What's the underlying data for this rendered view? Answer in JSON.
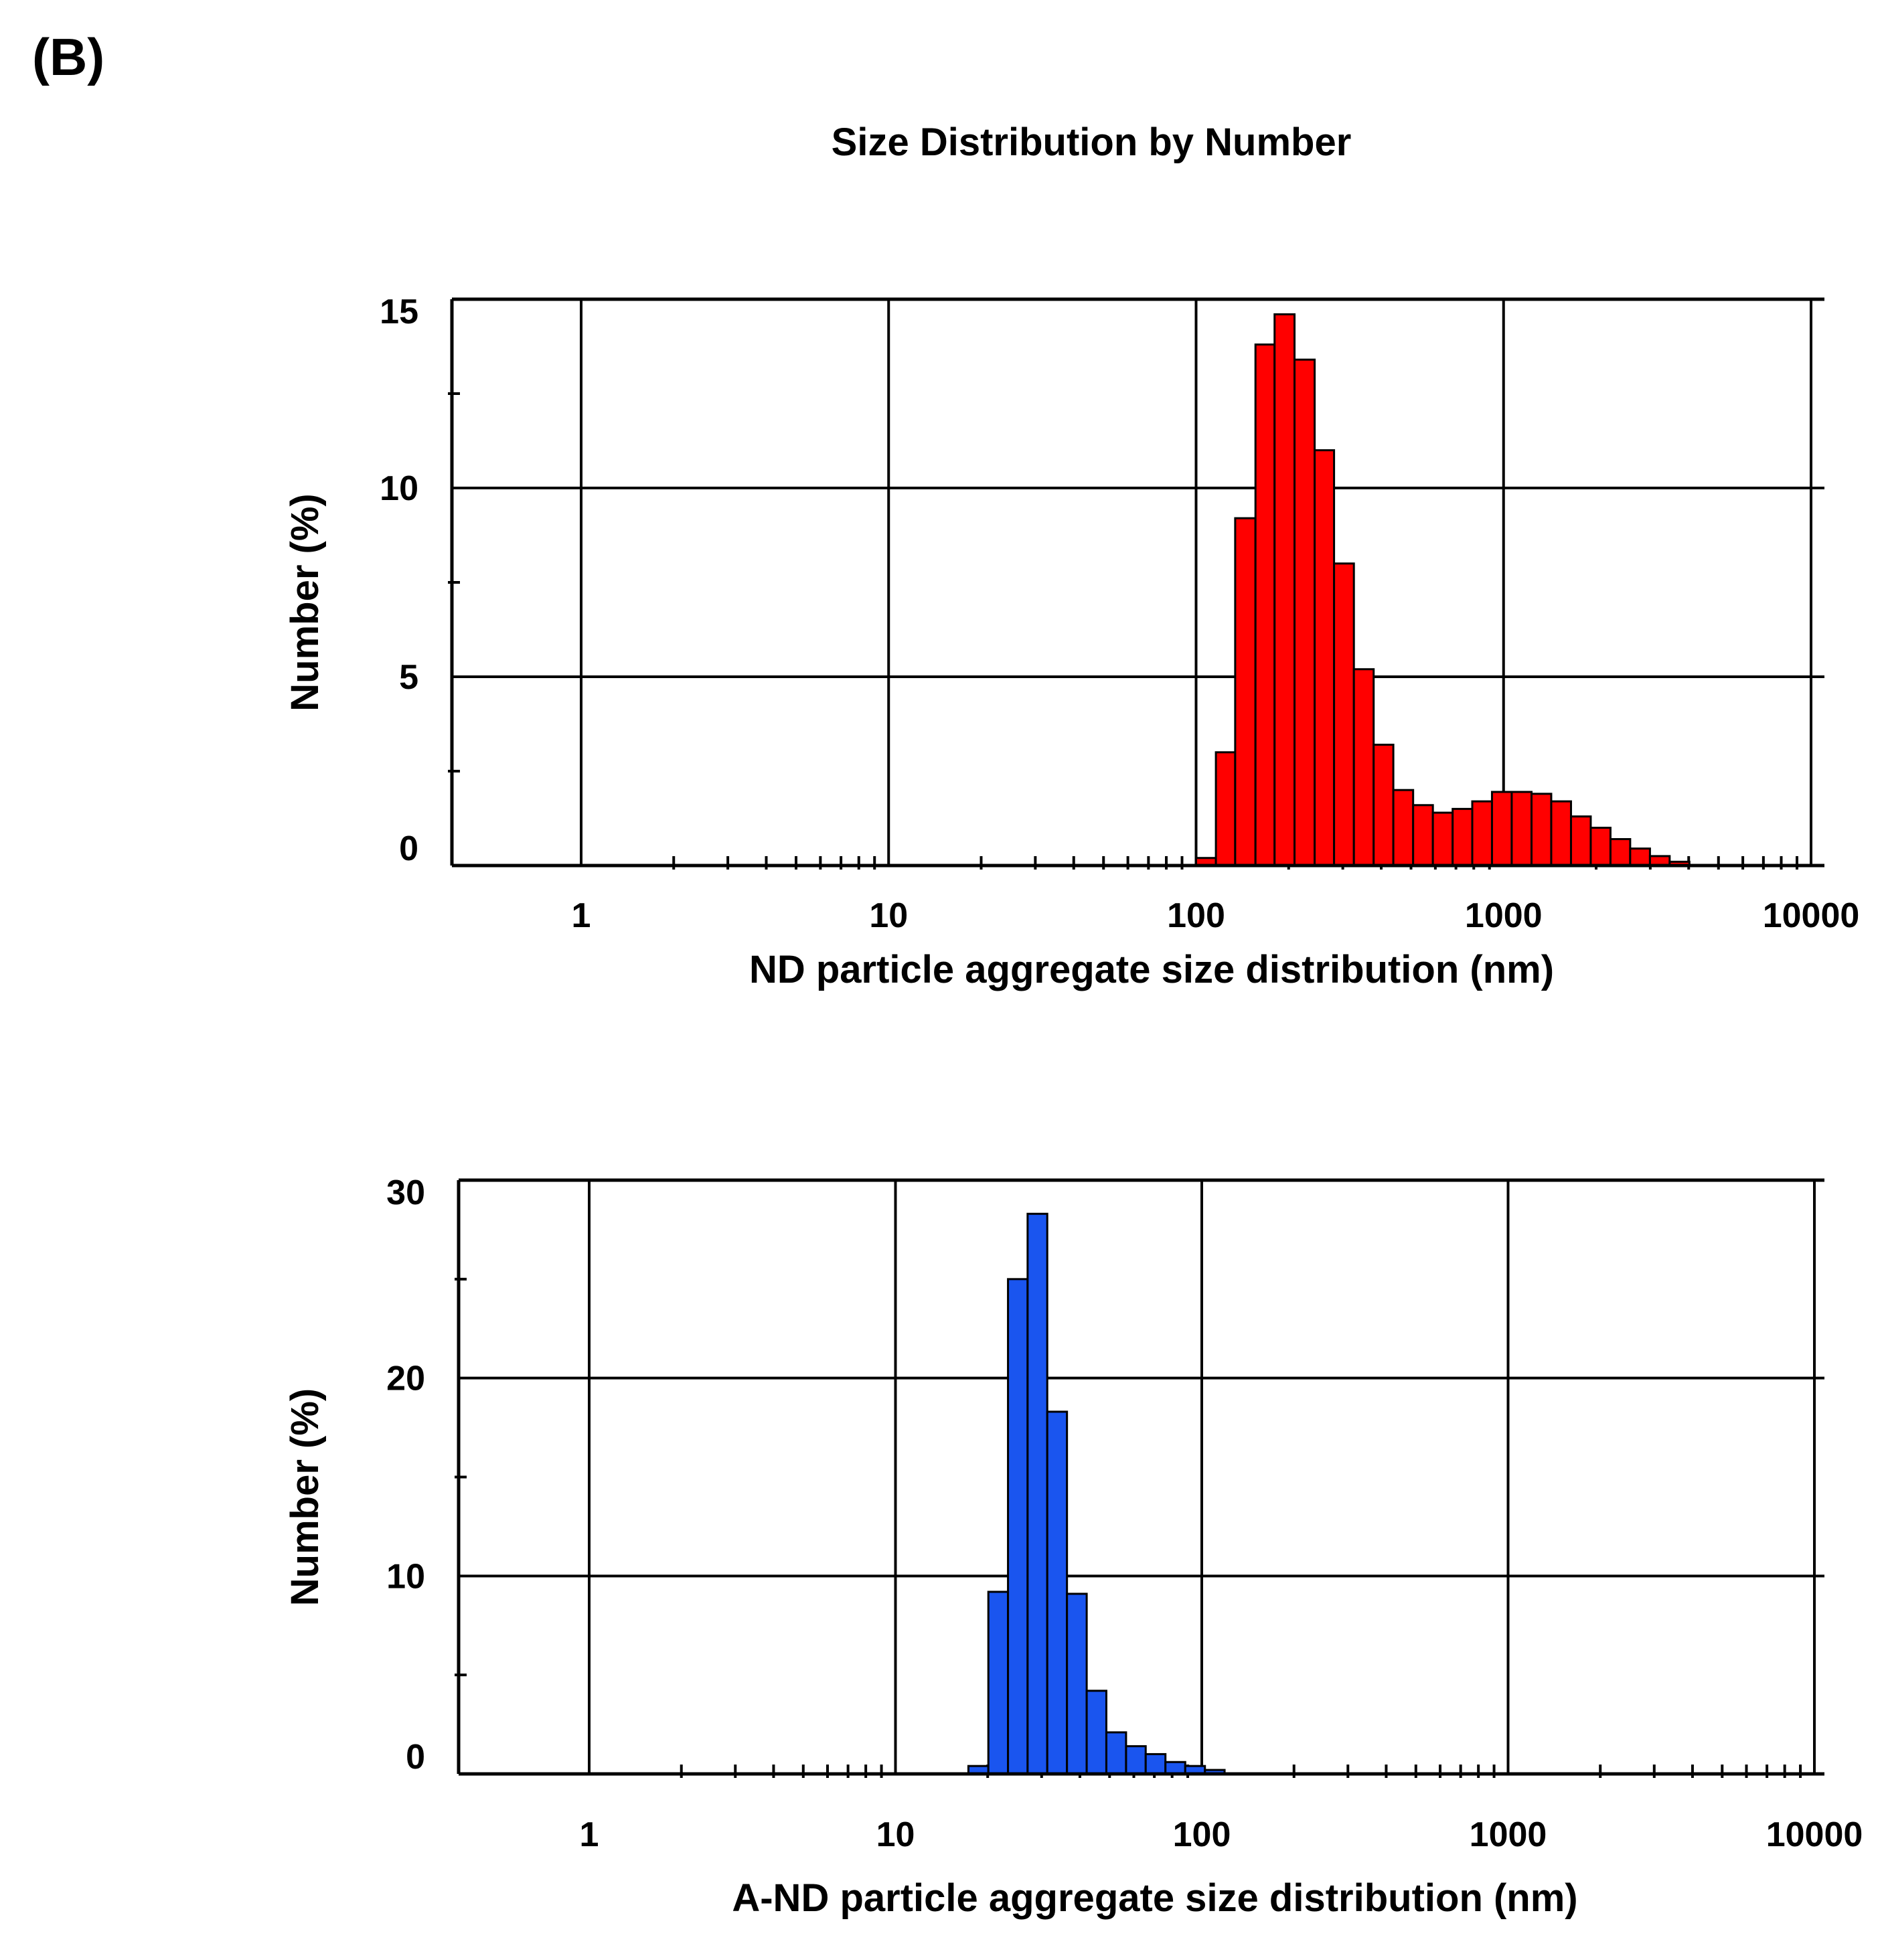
{
  "panel_label": "(B)",
  "figure_title": "Size Distribution by Number",
  "chart_data": [
    {
      "type": "bar",
      "name": "ND",
      "xscale": "log",
      "xlim": [
        0.4,
        10000
      ],
      "ylim": [
        0,
        15
      ],
      "xticks": [
        1,
        10,
        100,
        1000,
        10000
      ],
      "xtick_labels": [
        "1",
        "10",
        "100",
        "1000",
        "10000"
      ],
      "yticks": [
        0,
        5,
        10,
        15
      ],
      "ytick_labels": [
        "0",
        "5",
        "10",
        "15"
      ],
      "ylabel": "Number (%)",
      "xlabel": "ND particle aggregate size distribution (nm)",
      "bar_color": "#ff0000",
      "bin_edges": [
        100,
        116,
        134,
        156,
        180,
        209,
        243,
        281,
        326,
        378,
        438,
        508,
        589,
        683,
        791,
        917,
        1063,
        1233,
        1429,
        1657,
        1921,
        2227,
        2581,
        2993,
        3469,
        4022
      ],
      "values": [
        0.2,
        3.0,
        9.2,
        13.8,
        14.6,
        13.4,
        11.0,
        8.0,
        5.2,
        3.2,
        2.0,
        1.6,
        1.4,
        1.5,
        1.7,
        1.95,
        1.95,
        1.9,
        1.7,
        1.3,
        1.0,
        0.7,
        0.45,
        0.25,
        0.1
      ]
    },
    {
      "type": "bar",
      "name": "A-ND",
      "xscale": "log",
      "xlim": [
        0.4,
        10000
      ],
      "ylim": [
        0,
        30
      ],
      "xticks": [
        1,
        10,
        100,
        1000,
        10000
      ],
      "xtick_labels": [
        "1",
        "10",
        "100",
        "1000",
        "10000"
      ],
      "yticks": [
        0,
        10,
        20,
        30
      ],
      "ytick_labels": [
        "0",
        "10",
        "20",
        "30"
      ],
      "ylabel": "Number (%)",
      "xlabel": "A-ND particle aggregate size distribution (nm)",
      "bar_color": "#1a55ef",
      "bin_edges": [
        17.3,
        20.1,
        23.3,
        27.0,
        31.3,
        36.3,
        42.1,
        48.8,
        56.6,
        65.6,
        76.1,
        88.3,
        102.4,
        118.7
      ],
      "values": [
        0.4,
        9.2,
        25.0,
        28.3,
        18.3,
        9.1,
        4.2,
        2.1,
        1.4,
        1.0,
        0.6,
        0.4,
        0.2
      ]
    }
  ]
}
